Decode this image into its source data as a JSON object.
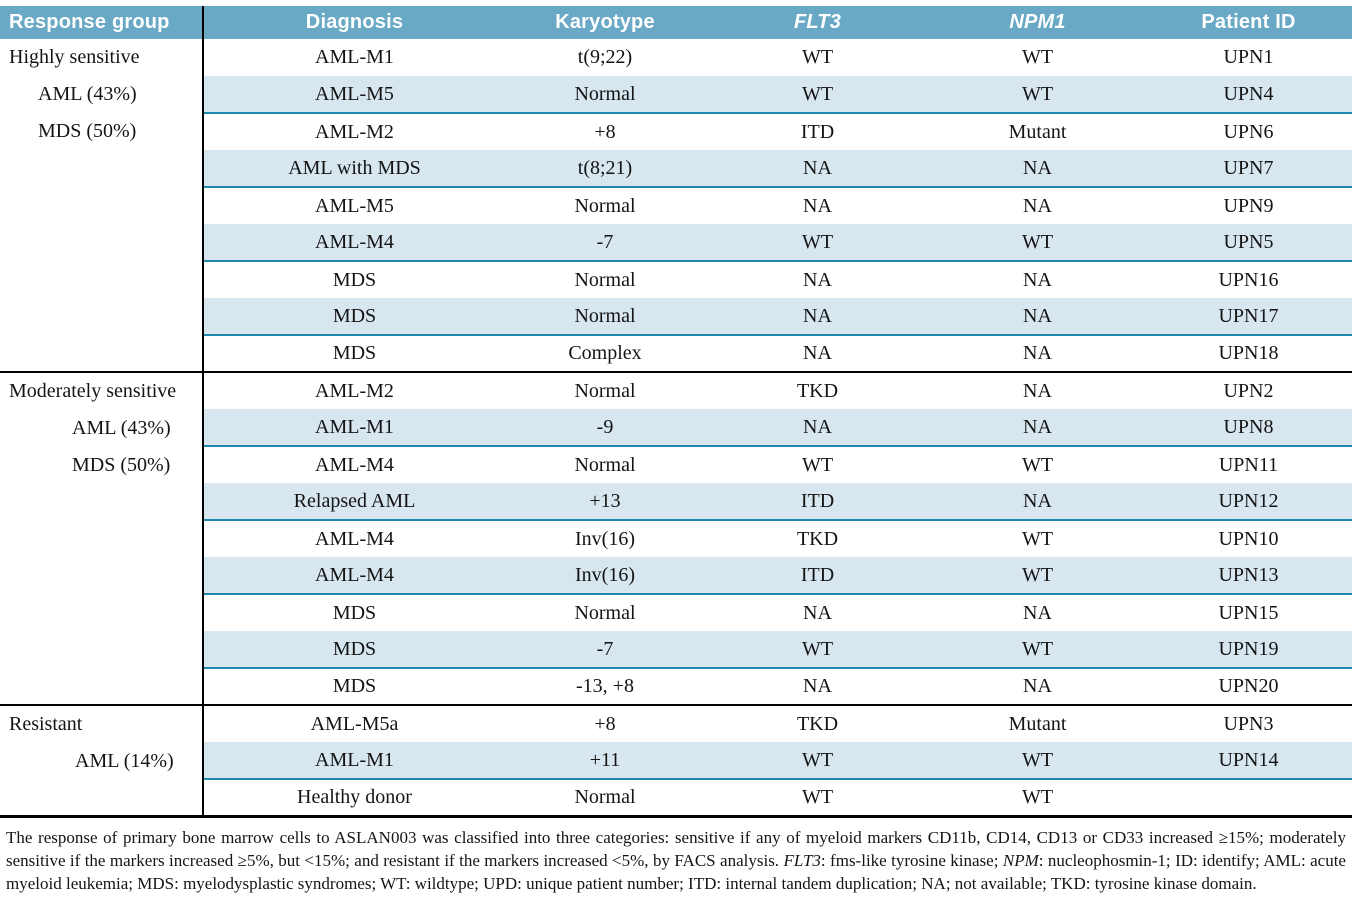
{
  "colors": {
    "header_background": "#69a9c5",
    "header_text": "#ffffff",
    "shaded_row_background": "#d7e6ef",
    "shaded_row_underline": "#1e88ae",
    "group_divider": "#000000",
    "body_text": "#141414"
  },
  "table": {
    "headers": [
      {
        "label": "Response group",
        "italic": false
      },
      {
        "label": "Diagnosis",
        "italic": false
      },
      {
        "label": "Karyotype",
        "italic": false
      },
      {
        "label": "FLT3",
        "italic": true
      },
      {
        "label": "NPM1",
        "italic": true
      },
      {
        "label": "Patient ID",
        "italic": false
      }
    ],
    "groups": [
      {
        "label_lines": [
          "Highly sensitive",
          "AML (43%)",
          "MDS (50%)"
        ],
        "rows": [
          {
            "diagnosis": "AML-M1",
            "karyotype": "t(9;22)",
            "flt3": "WT",
            "npm1": "WT",
            "patient_id": "UPN1",
            "shaded": false
          },
          {
            "diagnosis": "AML-M5",
            "karyotype": "Normal",
            "flt3": "WT",
            "npm1": "WT",
            "patient_id": "UPN4",
            "shaded": true
          },
          {
            "diagnosis": "AML-M2",
            "karyotype": "+8",
            "flt3": "ITD",
            "npm1": "Mutant",
            "patient_id": "UPN6",
            "shaded": false
          },
          {
            "diagnosis": "AML with MDS",
            "karyotype": "t(8;21)",
            "flt3": "NA",
            "npm1": "NA",
            "patient_id": "UPN7",
            "shaded": true
          },
          {
            "diagnosis": "AML-M5",
            "karyotype": "Normal",
            "flt3": "NA",
            "npm1": "NA",
            "patient_id": "UPN9",
            "shaded": false
          },
          {
            "diagnosis": "AML-M4",
            "karyotype": "-7",
            "flt3": "WT",
            "npm1": "WT",
            "patient_id": "UPN5",
            "shaded": true
          },
          {
            "diagnosis": "MDS",
            "karyotype": "Normal",
            "flt3": "NA",
            "npm1": "NA",
            "patient_id": "UPN16",
            "shaded": false
          },
          {
            "diagnosis": "MDS",
            "karyotype": "Normal",
            "flt3": "NA",
            "npm1": "NA",
            "patient_id": "UPN17",
            "shaded": true
          },
          {
            "diagnosis": "MDS",
            "karyotype": "Complex",
            "flt3": "NA",
            "npm1": "NA",
            "patient_id": "UPN18",
            "shaded": false
          }
        ]
      },
      {
        "label_lines": [
          "Moderately sensitive",
          "AML (43%)",
          "MDS (50%)"
        ],
        "rows": [
          {
            "diagnosis": "AML-M2",
            "karyotype": "Normal",
            "flt3": "TKD",
            "npm1": "NA",
            "patient_id": "UPN2",
            "shaded": false
          },
          {
            "diagnosis": "AML-M1",
            "karyotype": "-9",
            "flt3": "NA",
            "npm1": "NA",
            "patient_id": "UPN8",
            "shaded": true
          },
          {
            "diagnosis": "AML-M4",
            "karyotype": "Normal",
            "flt3": "WT",
            "npm1": "WT",
            "patient_id": "UPN11",
            "shaded": false
          },
          {
            "diagnosis": "Relapsed AML",
            "karyotype": "+13",
            "flt3": "ITD",
            "npm1": "NA",
            "patient_id": "UPN12",
            "shaded": true
          },
          {
            "diagnosis": "AML-M4",
            "karyotype": "Inv(16)",
            "flt3": "TKD",
            "npm1": "WT",
            "patient_id": "UPN10",
            "shaded": false
          },
          {
            "diagnosis": "AML-M4",
            "karyotype": "Inv(16)",
            "flt3": "ITD",
            "npm1": "WT",
            "patient_id": "UPN13",
            "shaded": true
          },
          {
            "diagnosis": "MDS",
            "karyotype": "Normal",
            "flt3": "NA",
            "npm1": "NA",
            "patient_id": "UPN15",
            "shaded": false
          },
          {
            "diagnosis": "MDS",
            "karyotype": "-7",
            "flt3": "WT",
            "npm1": "WT",
            "patient_id": "UPN19",
            "shaded": true
          },
          {
            "diagnosis": "MDS",
            "karyotype": "-13, +8",
            "flt3": "NA",
            "npm1": "NA",
            "patient_id": "UPN20",
            "shaded": false
          }
        ]
      },
      {
        "label_lines": [
          "Resistant",
          "AML (14%)"
        ],
        "rows": [
          {
            "diagnosis": "AML-M5a",
            "karyotype": "+8",
            "flt3": "TKD",
            "npm1": "Mutant",
            "patient_id": "UPN3",
            "shaded": false
          },
          {
            "diagnosis": "AML-M1",
            "karyotype": "+11",
            "flt3": "WT",
            "npm1": "WT",
            "patient_id": "UPN14",
            "shaded": true
          },
          {
            "diagnosis": "Healthy donor",
            "karyotype": "Normal",
            "flt3": "WT",
            "npm1": "WT",
            "patient_id": "",
            "shaded": false
          }
        ]
      }
    ],
    "footnote_segments": [
      {
        "text": "The response of primary bone marrow cells to ASLAN003 was classified into three categories: sensitive if any of myeloid markers CD11b, CD14, CD13 or CD33 increased ≥15%; moderately sensitive if the markers increased ≥5%, but <15%; and resistant if the markers increased <5%, by FACS analysis. ",
        "italic": false
      },
      {
        "text": "FLT3",
        "italic": true
      },
      {
        "text": ": fms-like tyrosine kinase; ",
        "italic": false
      },
      {
        "text": "NPM",
        "italic": true
      },
      {
        "text": ": nucleophosmin-1; ID: identify; AML: acute myeloid leukemia; MDS: myelodysplastic syndromes; WT: wildtype; UPD: unique patient number; ITD: internal tandem duplication; NA; not available; TKD: tyrosine kinase domain.",
        "italic": false
      }
    ]
  }
}
